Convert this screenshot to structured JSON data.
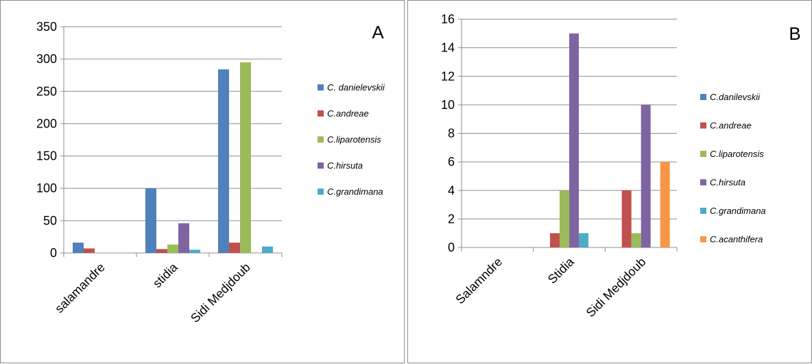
{
  "chart_data": [
    {
      "type": "bar",
      "panel_label": "A",
      "categories": [
        "salamandre",
        "stidia",
        "Sidi Medjdoub"
      ],
      "series": [
        {
          "name": "C. danielevskii",
          "color": "#4f81bd",
          "values": [
            16,
            100,
            284
          ]
        },
        {
          "name": "C.andreae",
          "color": "#c0504d",
          "values": [
            7,
            6,
            16
          ]
        },
        {
          "name": "C.liparotensis",
          "color": "#9bbb59",
          "values": [
            0,
            13,
            295
          ]
        },
        {
          "name": "C.hirsuta",
          "color": "#8064a2",
          "values": [
            0,
            46,
            0
          ]
        },
        {
          "name": "C.grandimana",
          "color": "#4bacc6",
          "values": [
            0,
            5,
            10
          ]
        }
      ],
      "ylim": [
        0,
        350
      ],
      "yticks": [
        0,
        50,
        100,
        150,
        200,
        250,
        300,
        350
      ],
      "grid": true,
      "legend_position": "right"
    },
    {
      "type": "bar",
      "panel_label": "B",
      "categories": [
        "Salamndre",
        "Stidia",
        "Sidi Medjdoub"
      ],
      "series": [
        {
          "name": "C.danilevskii",
          "color": "#4f81bd",
          "values": [
            0,
            0,
            0
          ]
        },
        {
          "name": "C.andreae",
          "color": "#c0504d",
          "values": [
            0,
            1,
            4
          ]
        },
        {
          "name": "C.liparotensis",
          "color": "#9bbb59",
          "values": [
            0,
            4,
            1
          ]
        },
        {
          "name": "C.hirsuta",
          "color": "#8064a2",
          "values": [
            0,
            15,
            10
          ]
        },
        {
          "name": "C.grandimana",
          "color": "#4bacc6",
          "values": [
            0,
            1,
            0
          ]
        },
        {
          "name": "C.acanthifera",
          "color": "#f79646",
          "values": [
            0,
            0,
            6
          ]
        }
      ],
      "ylim": [
        0,
        16
      ],
      "yticks": [
        0,
        2,
        4,
        6,
        8,
        10,
        12,
        14,
        16
      ],
      "grid": true,
      "legend_position": "right"
    }
  ]
}
